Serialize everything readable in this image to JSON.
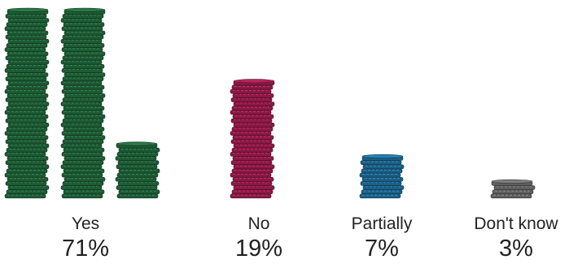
{
  "chart_data": {
    "type": "bar",
    "categories": [
      "Yes",
      "No",
      "Partially",
      "Don't know"
    ],
    "values": [
      71,
      19,
      7,
      3
    ],
    "value_labels": [
      "71%",
      "19%",
      "7%",
      "3%"
    ],
    "unit": "%",
    "colors": [
      "#1e5a35",
      "#8a1a45",
      "#1c5f85",
      "#5e5e5e"
    ],
    "style": "stacked coins",
    "grid": false,
    "legend": "none"
  }
}
